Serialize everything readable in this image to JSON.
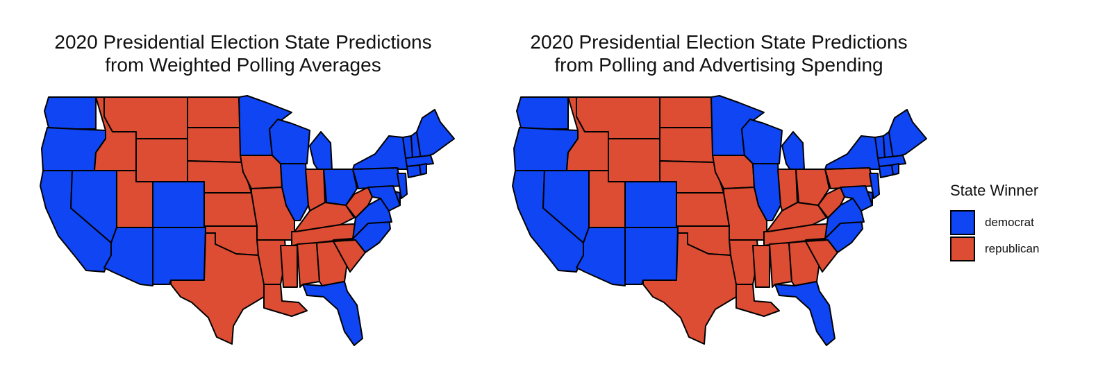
{
  "colors": {
    "democrat": "#0F45F2",
    "republican": "#DC4D34",
    "border": "#000000"
  },
  "maps": [
    {
      "title_line1": "2020 Presidential Election State Predictions",
      "title_line2": "from Weighted Polling Averages",
      "winners": {
        "WA": "democrat",
        "OR": "democrat",
        "CA": "democrat",
        "NV": "democrat",
        "ID": "republican",
        "MT": "republican",
        "WY": "republican",
        "UT": "republican",
        "CO": "democrat",
        "AZ": "democrat",
        "NM": "democrat",
        "ND": "republican",
        "SD": "republican",
        "NE": "republican",
        "KS": "republican",
        "OK": "republican",
        "TX": "republican",
        "MN": "democrat",
        "IA": "republican",
        "MO": "republican",
        "AR": "republican",
        "LA": "republican",
        "WI": "democrat",
        "IL": "democrat",
        "MI": "democrat",
        "IN": "republican",
        "OH": "democrat",
        "KY": "republican",
        "TN": "republican",
        "MS": "republican",
        "AL": "republican",
        "GA": "republican",
        "FL": "democrat",
        "SC": "republican",
        "NC": "democrat",
        "VA": "democrat",
        "WV": "republican",
        "PA": "democrat",
        "NY": "democrat",
        "NJ": "democrat",
        "DE": "democrat",
        "MD": "democrat",
        "VT": "democrat",
        "NH": "democrat",
        "ME": "democrat",
        "MA": "democrat",
        "CT": "democrat",
        "RI": "democrat"
      }
    },
    {
      "title_line1": "2020 Presidential Election State Predictions",
      "title_line2": "from Polling and Advertising Spending",
      "winners": {
        "WA": "democrat",
        "OR": "democrat",
        "CA": "democrat",
        "NV": "democrat",
        "ID": "republican",
        "MT": "republican",
        "WY": "republican",
        "UT": "republican",
        "CO": "democrat",
        "AZ": "democrat",
        "NM": "democrat",
        "ND": "republican",
        "SD": "republican",
        "NE": "republican",
        "KS": "republican",
        "OK": "republican",
        "TX": "republican",
        "MN": "democrat",
        "IA": "republican",
        "MO": "republican",
        "AR": "republican",
        "LA": "republican",
        "WI": "democrat",
        "IL": "democrat",
        "MI": "democrat",
        "IN": "republican",
        "OH": "republican",
        "KY": "republican",
        "TN": "republican",
        "MS": "republican",
        "AL": "republican",
        "GA": "republican",
        "FL": "democrat",
        "SC": "republican",
        "NC": "democrat",
        "VA": "democrat",
        "WV": "republican",
        "PA": "republican",
        "NY": "democrat",
        "NJ": "democrat",
        "DE": "democrat",
        "MD": "democrat",
        "VT": "democrat",
        "NH": "democrat",
        "ME": "democrat",
        "MA": "democrat",
        "CT": "democrat",
        "RI": "democrat"
      }
    }
  ],
  "legend": {
    "title": "State Winner",
    "items": [
      {
        "key": "democrat",
        "label": "democrat"
      },
      {
        "key": "republican",
        "label": "republican"
      }
    ]
  }
}
